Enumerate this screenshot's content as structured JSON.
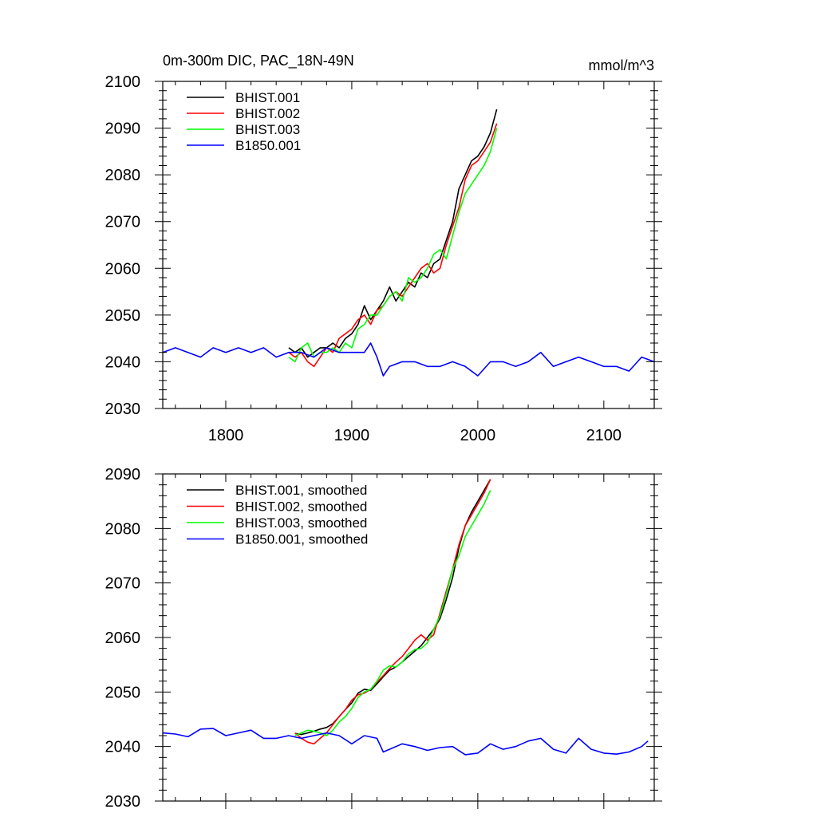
{
  "header": {
    "left_title": "0m-300m DIC, PAC_18N-49N",
    "units": "mmol/m^3"
  },
  "colors": {
    "BHIST.001": "#000000",
    "BHIST.002": "#ff0000",
    "BHIST.003": "#00ff00",
    "B1850.001": "#0000ff"
  },
  "chart_data": [
    {
      "type": "line",
      "title": "0m-300m DIC, PAC_18N-49N",
      "units": "mmol/m^3",
      "xlabel": "",
      "ylabel": "",
      "xlim": [
        1750,
        2140
      ],
      "ylim": [
        2030,
        2100
      ],
      "x_ticks": [
        1800,
        1900,
        2000,
        2100
      ],
      "x_tick_labels": [
        "1800",
        "1900",
        "2000",
        "2100"
      ],
      "y_ticks": [
        2030,
        2040,
        2050,
        2060,
        2070,
        2080,
        2090,
        2100
      ],
      "y_tick_labels": [
        "2030",
        "2040",
        "2050",
        "2060",
        "2070",
        "2080",
        "2090",
        "2100"
      ],
      "grid": false,
      "legend": "top-left",
      "series": [
        {
          "name": "BHIST.001",
          "color": "#000000",
          "x": [
            1850,
            1855,
            1860,
            1865,
            1870,
            1875,
            1880,
            1885,
            1890,
            1895,
            1900,
            1905,
            1910,
            1915,
            1920,
            1925,
            1930,
            1935,
            1940,
            1945,
            1950,
            1955,
            1960,
            1965,
            1970,
            1975,
            1980,
            1985,
            1990,
            1995,
            2000,
            2005,
            2010,
            2015
          ],
          "y": [
            2043,
            2042,
            2043,
            2041,
            2042,
            2043,
            2043,
            2044,
            2043,
            2045,
            2046,
            2048,
            2052,
            2049,
            2051,
            2053,
            2056,
            2053,
            2055,
            2057,
            2056,
            2059,
            2058,
            2061,
            2062,
            2066,
            2070,
            2077,
            2080,
            2083,
            2084,
            2086,
            2089,
            2094
          ]
        },
        {
          "name": "BHIST.002",
          "color": "#ff0000",
          "x": [
            1850,
            1855,
            1860,
            1865,
            1870,
            1875,
            1880,
            1885,
            1890,
            1895,
            1900,
            1905,
            1910,
            1915,
            1920,
            1925,
            1930,
            1935,
            1940,
            1945,
            1950,
            1955,
            1960,
            1965,
            1970,
            1975,
            1980,
            1985,
            1990,
            1995,
            2000,
            2005,
            2010,
            2015
          ],
          "y": [
            2042,
            2041,
            2042,
            2040,
            2039,
            2041,
            2043,
            2042,
            2045,
            2046,
            2047,
            2049,
            2050,
            2048,
            2051,
            2052,
            2054,
            2055,
            2054,
            2056,
            2058,
            2060,
            2061,
            2059,
            2060,
            2065,
            2069,
            2073,
            2079,
            2082,
            2083,
            2085,
            2087,
            2091
          ]
        },
        {
          "name": "BHIST.003",
          "color": "#00ff00",
          "x": [
            1850,
            1855,
            1860,
            1865,
            1870,
            1875,
            1880,
            1885,
            1890,
            1895,
            1900,
            1905,
            1910,
            1915,
            1920,
            1925,
            1930,
            1935,
            1940,
            1945,
            1950,
            1955,
            1960,
            1965,
            1970,
            1975,
            1980,
            1985,
            1990,
            1995,
            2000,
            2005,
            2010,
            2015
          ],
          "y": [
            2041,
            2040,
            2043,
            2044,
            2041,
            2042,
            2042,
            2043,
            2042,
            2044,
            2043,
            2047,
            2048,
            2050,
            2050,
            2052,
            2054,
            2055,
            2053,
            2058,
            2057,
            2058,
            2060,
            2063,
            2064,
            2062,
            2067,
            2072,
            2076,
            2078,
            2080,
            2082,
            2085,
            2090
          ]
        },
        {
          "name": "B1850.001",
          "color": "#0000ff",
          "x": [
            1750,
            1760,
            1770,
            1780,
            1790,
            1800,
            1810,
            1820,
            1830,
            1840,
            1850,
            1860,
            1870,
            1880,
            1890,
            1900,
            1910,
            1915,
            1920,
            1925,
            1930,
            1940,
            1950,
            1960,
            1970,
            1980,
            1990,
            2000,
            2010,
            2020,
            2030,
            2040,
            2050,
            2060,
            2070,
            2080,
            2090,
            2100,
            2110,
            2120,
            2130,
            2140
          ],
          "y": [
            2042,
            2043,
            2042,
            2041,
            2043,
            2042,
            2043,
            2042,
            2043,
            2041,
            2042,
            2042,
            2041,
            2043,
            2042,
            2042,
            2042,
            2044,
            2041,
            2037,
            2039,
            2040,
            2040,
            2039,
            2039,
            2040,
            2039,
            2037,
            2040,
            2040,
            2039,
            2040,
            2042,
            2039,
            2040,
            2041,
            2040,
            2039,
            2039,
            2038,
            2041,
            2040
          ]
        }
      ]
    },
    {
      "type": "line",
      "title": "",
      "xlabel": "",
      "ylabel": "",
      "xlim": [
        1750,
        2140
      ],
      "ylim": [
        2030,
        2090
      ],
      "x_ticks": [
        1800,
        1900,
        2000,
        2100
      ],
      "x_tick_labels": [],
      "y_ticks": [
        2030,
        2040,
        2050,
        2060,
        2070,
        2080,
        2090
      ],
      "y_tick_labels": [
        "2030",
        "2040",
        "2050",
        "2060",
        "2070",
        "2080",
        "2090"
      ],
      "grid": false,
      "legend": "top-left",
      "series": [
        {
          "name": "BHIST.001, smoothed",
          "color": "#000000",
          "x": [
            1855,
            1860,
            1865,
            1870,
            1875,
            1880,
            1885,
            1890,
            1895,
            1900,
            1905,
            1910,
            1915,
            1920,
            1925,
            1930,
            1935,
            1940,
            1945,
            1950,
            1955,
            1960,
            1965,
            1970,
            1975,
            1980,
            1985,
            1990,
            1995,
            2000,
            2005,
            2010
          ],
          "y": [
            2042.4,
            2042.2,
            2042.5,
            2042.8,
            2043.2,
            2043.5,
            2044.2,
            2045.5,
            2046.8,
            2048.0,
            2049.8,
            2050.5,
            2050.3,
            2051.5,
            2052.8,
            2054.0,
            2054.6,
            2055.5,
            2056.5,
            2057.5,
            2058.5,
            2060.0,
            2061.5,
            2063.5,
            2067.0,
            2071.0,
            2076.5,
            2080.5,
            2083.0,
            2085.0,
            2087.0,
            2089.0
          ]
        },
        {
          "name": "BHIST.002, smoothed",
          "color": "#ff0000",
          "x": [
            1855,
            1860,
            1865,
            1870,
            1875,
            1880,
            1885,
            1890,
            1895,
            1900,
            1905,
            1910,
            1915,
            1920,
            1925,
            1930,
            1935,
            1940,
            1945,
            1950,
            1955,
            1960,
            1965,
            1970,
            1975,
            1980,
            1985,
            1990,
            1995,
            2000,
            2005,
            2010
          ],
          "y": [
            2042.5,
            2041.5,
            2040.8,
            2040.5,
            2041.5,
            2042.5,
            2044.0,
            2045.5,
            2046.8,
            2048.5,
            2049.5,
            2049.8,
            2050.5,
            2051.8,
            2053.0,
            2054.3,
            2055.5,
            2056.5,
            2058.0,
            2059.5,
            2060.5,
            2059.5,
            2060.5,
            2064.5,
            2068.5,
            2072.5,
            2077.0,
            2080.5,
            2082.5,
            2084.5,
            2086.5,
            2089.0
          ]
        },
        {
          "name": "BHIST.003, smoothed",
          "color": "#00ff00",
          "x": [
            1855,
            1860,
            1865,
            1870,
            1875,
            1880,
            1885,
            1890,
            1895,
            1900,
            1905,
            1910,
            1915,
            1920,
            1925,
            1930,
            1935,
            1940,
            1945,
            1950,
            1955,
            1960,
            1965,
            1970,
            1975,
            1980,
            1985,
            1990,
            1995,
            2000,
            2005,
            2010
          ],
          "y": [
            2042.0,
            2042.5,
            2043.0,
            2042.8,
            2042.5,
            2042.0,
            2043.0,
            2044.5,
            2045.5,
            2047.0,
            2049.0,
            2050.0,
            2050.5,
            2052.0,
            2054.0,
            2054.8,
            2054.6,
            2055.5,
            2057.0,
            2057.8,
            2058.0,
            2059.0,
            2061.5,
            2064.0,
            2068.0,
            2072.5,
            2075.0,
            2078.5,
            2080.5,
            2082.5,
            2084.5,
            2087.0
          ]
        },
        {
          "name": "B1850.001, smoothed",
          "color": "#0000ff",
          "x": [
            1750,
            1760,
            1770,
            1780,
            1790,
            1800,
            1810,
            1820,
            1830,
            1840,
            1850,
            1860,
            1870,
            1880,
            1890,
            1900,
            1910,
            1920,
            1925,
            1930,
            1940,
            1950,
            1960,
            1970,
            1980,
            1990,
            2000,
            2010,
            2020,
            2030,
            2040,
            2050,
            2060,
            2070,
            2080,
            2090,
            2100,
            2110,
            2120,
            2130,
            2135
          ],
          "y": [
            2042.5,
            2042.3,
            2041.8,
            2043.2,
            2043.3,
            2042.0,
            2042.5,
            2043.0,
            2041.5,
            2041.5,
            2042.0,
            2041.5,
            2042.0,
            2042.5,
            2042.0,
            2040.5,
            2042.0,
            2041.5,
            2039.0,
            2039.5,
            2040.5,
            2040.0,
            2039.3,
            2039.8,
            2040.0,
            2038.5,
            2038.8,
            2040.5,
            2039.5,
            2040.0,
            2041.0,
            2041.5,
            2039.5,
            2038.8,
            2041.5,
            2039.5,
            2038.8,
            2038.6,
            2039.0,
            2040.0,
            2041.0
          ]
        }
      ]
    }
  ]
}
